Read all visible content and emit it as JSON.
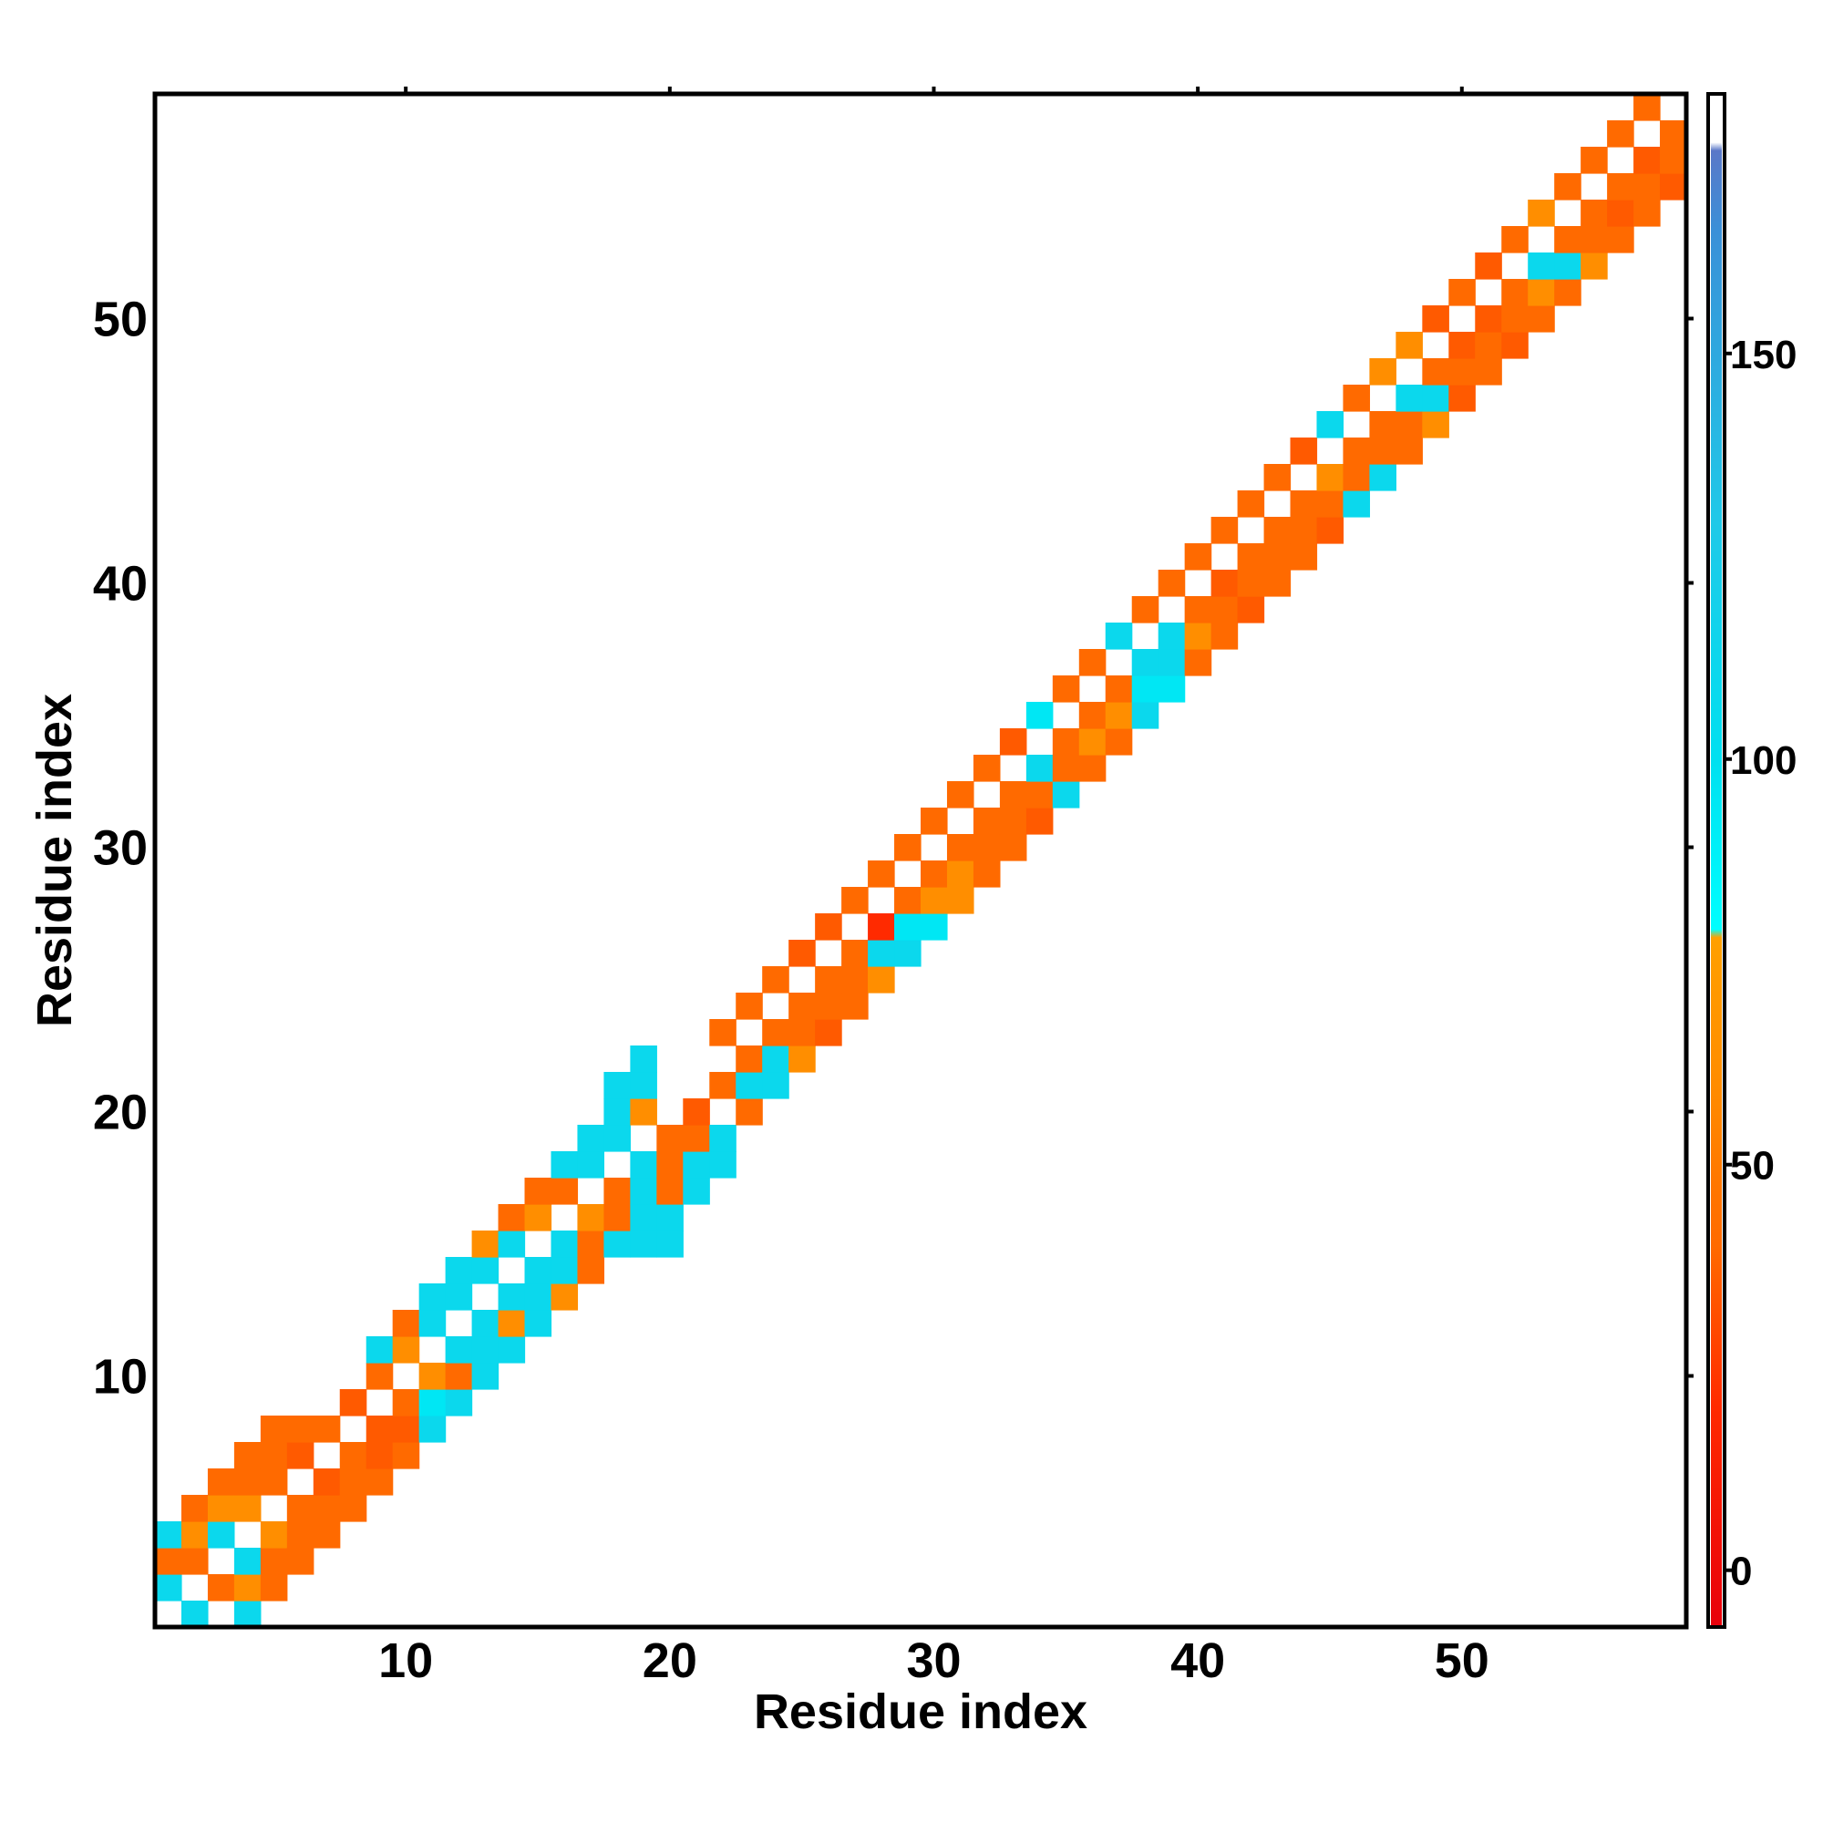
{
  "chart_data": {
    "type": "heatmap",
    "title": "",
    "xlabel": "Residue index",
    "ylabel": "Residue index",
    "xlim": [
      0.5,
      58.5
    ],
    "ylim": [
      0.5,
      58.5
    ],
    "x_ticks": [
      10,
      20,
      30,
      40,
      50
    ],
    "y_ticks": [
      10,
      20,
      30,
      40,
      50
    ],
    "grid": false,
    "colorbar": {
      "placement": "right",
      "range": [
        -7,
        182
      ],
      "ticks": [
        0,
        50,
        100,
        150
      ],
      "gradient": [
        {
          "value": -7,
          "color": "#e8000b"
        },
        {
          "value": 20,
          "color": "#ff2a00"
        },
        {
          "value": 40,
          "color": "#ff6a00"
        },
        {
          "value": 60,
          "color": "#ff8c00"
        },
        {
          "value": 78,
          "color": "#ffa000"
        },
        {
          "value": 79,
          "color": "#00ffff"
        },
        {
          "value": 100,
          "color": "#00e0f0"
        },
        {
          "value": 130,
          "color": "#20c8e8"
        },
        {
          "value": 165,
          "color": "#3a90d8"
        },
        {
          "value": 175,
          "color": "#5a78c8"
        },
        {
          "value": 176,
          "color": "#ffffff"
        },
        {
          "value": 182,
          "color": "#ffffff"
        }
      ]
    },
    "cells": [
      [
        1,
        2,
        110
      ],
      [
        1,
        3,
        40
      ],
      [
        1,
        4,
        110
      ],
      [
        2,
        1,
        110
      ],
      [
        2,
        3,
        40
      ],
      [
        2,
        4,
        62
      ],
      [
        2,
        5,
        40
      ],
      [
        3,
        2,
        40
      ],
      [
        3,
        4,
        110
      ],
      [
        3,
        5,
        62
      ],
      [
        3,
        6,
        40
      ],
      [
        4,
        1,
        110
      ],
      [
        4,
        2,
        62
      ],
      [
        4,
        3,
        110
      ],
      [
        4,
        5,
        62
      ],
      [
        4,
        6,
        40
      ],
      [
        4,
        7,
        40
      ],
      [
        5,
        2,
        40
      ],
      [
        5,
        3,
        40
      ],
      [
        5,
        4,
        62
      ],
      [
        5,
        6,
        40
      ],
      [
        5,
        7,
        40
      ],
      [
        5,
        8,
        40
      ],
      [
        6,
        3,
        40
      ],
      [
        6,
        4,
        40
      ],
      [
        6,
        5,
        40
      ],
      [
        6,
        7,
        35
      ],
      [
        6,
        8,
        40
      ],
      [
        7,
        4,
        40
      ],
      [
        7,
        5,
        40
      ],
      [
        7,
        6,
        35
      ],
      [
        7,
        8,
        40
      ],
      [
        8,
        5,
        40
      ],
      [
        8,
        6,
        40
      ],
      [
        8,
        7,
        40
      ],
      [
        8,
        9,
        35
      ],
      [
        9,
        6,
        40
      ],
      [
        9,
        7,
        35
      ],
      [
        9,
        8,
        35
      ],
      [
        9,
        10,
        40
      ],
      [
        9,
        11,
        110
      ],
      [
        10,
        7,
        40
      ],
      [
        10,
        8,
        35
      ],
      [
        10,
        9,
        40
      ],
      [
        10,
        11,
        62
      ],
      [
        10,
        12,
        40
      ],
      [
        11,
        8,
        110
      ],
      [
        11,
        9,
        95
      ],
      [
        11,
        10,
        62
      ],
      [
        11,
        12,
        110
      ],
      [
        11,
        13,
        110
      ],
      [
        12,
        9,
        110
      ],
      [
        12,
        10,
        40
      ],
      [
        12,
        11,
        110
      ],
      [
        12,
        13,
        110
      ],
      [
        12,
        14,
        110
      ],
      [
        13,
        10,
        110
      ],
      [
        13,
        11,
        110
      ],
      [
        13,
        12,
        110
      ],
      [
        13,
        14,
        110
      ],
      [
        13,
        15,
        62
      ],
      [
        14,
        11,
        110
      ],
      [
        14,
        12,
        62
      ],
      [
        14,
        13,
        110
      ],
      [
        14,
        15,
        110
      ],
      [
        14,
        16,
        40
      ],
      [
        15,
        12,
        110
      ],
      [
        15,
        13,
        110
      ],
      [
        15,
        14,
        110
      ],
      [
        15,
        16,
        62
      ],
      [
        15,
        17,
        40
      ],
      [
        16,
        13,
        62
      ],
      [
        16,
        14,
        110
      ],
      [
        16,
        15,
        110
      ],
      [
        16,
        17,
        40
      ],
      [
        16,
        18,
        110
      ],
      [
        17,
        14,
        40
      ],
      [
        17,
        15,
        40
      ],
      [
        17,
        16,
        62
      ],
      [
        17,
        18,
        110
      ],
      [
        17,
        19,
        110
      ],
      [
        18,
        15,
        110
      ],
      [
        18,
        16,
        40
      ],
      [
        18,
        17,
        40
      ],
      [
        18,
        19,
        110
      ],
      [
        18,
        20,
        110
      ],
      [
        19,
        15,
        110
      ],
      [
        19,
        16,
        110
      ],
      [
        19,
        17,
        110
      ],
      [
        19,
        18,
        110
      ],
      [
        19,
        20,
        62
      ],
      [
        20,
        15,
        110
      ],
      [
        20,
        16,
        110
      ],
      [
        20,
        17,
        40
      ],
      [
        20,
        18,
        40
      ],
      [
        20,
        19,
        40
      ],
      [
        21,
        17,
        110
      ],
      [
        21,
        18,
        110
      ],
      [
        21,
        19,
        40
      ],
      [
        21,
        20,
        35
      ],
      [
        22,
        18,
        110
      ],
      [
        22,
        19,
        110
      ],
      [
        22,
        21,
        40
      ],
      [
        22,
        23,
        40
      ],
      [
        23,
        20,
        40
      ],
      [
        23,
        21,
        110
      ],
      [
        23,
        22,
        40
      ],
      [
        23,
        24,
        40
      ],
      [
        24,
        21,
        110
      ],
      [
        24,
        22,
        110
      ],
      [
        24,
        23,
        40
      ],
      [
        24,
        25,
        40
      ],
      [
        25,
        22,
        62
      ],
      [
        25,
        23,
        40
      ],
      [
        25,
        24,
        40
      ],
      [
        25,
        26,
        35
      ],
      [
        26,
        23,
        35
      ],
      [
        26,
        24,
        40
      ],
      [
        26,
        25,
        40
      ],
      [
        26,
        27,
        35
      ],
      [
        27,
        24,
        40
      ],
      [
        27,
        25,
        40
      ],
      [
        27,
        26,
        40
      ],
      [
        27,
        28,
        40
      ],
      [
        28,
        25,
        62
      ],
      [
        28,
        26,
        110
      ],
      [
        28,
        27,
        20
      ],
      [
        28,
        29,
        40
      ],
      [
        29,
        26,
        110
      ],
      [
        29,
        27,
        95
      ],
      [
        29,
        28,
        40
      ],
      [
        29,
        30,
        40
      ],
      [
        30,
        27,
        95
      ],
      [
        30,
        28,
        62
      ],
      [
        30,
        29,
        40
      ],
      [
        30,
        31,
        40
      ],
      [
        31,
        28,
        62
      ],
      [
        31,
        29,
        62
      ],
      [
        31,
        30,
        40
      ],
      [
        31,
        32,
        40
      ],
      [
        32,
        29,
        40
      ],
      [
        32,
        30,
        40
      ],
      [
        32,
        31,
        40
      ],
      [
        32,
        33,
        40
      ],
      [
        33,
        30,
        40
      ],
      [
        33,
        31,
        40
      ],
      [
        33,
        32,
        40
      ],
      [
        33,
        34,
        35
      ],
      [
        34,
        31,
        35
      ],
      [
        34,
        32,
        40
      ],
      [
        34,
        33,
        110
      ],
      [
        34,
        35,
        95
      ],
      [
        35,
        32,
        110
      ],
      [
        35,
        33,
        40
      ],
      [
        35,
        34,
        40
      ],
      [
        35,
        36,
        40
      ],
      [
        36,
        33,
        40
      ],
      [
        36,
        34,
        62
      ],
      [
        36,
        35,
        40
      ],
      [
        36,
        37,
        40
      ],
      [
        37,
        34,
        40
      ],
      [
        37,
        35,
        62
      ],
      [
        37,
        36,
        40
      ],
      [
        37,
        38,
        110
      ],
      [
        38,
        35,
        110
      ],
      [
        38,
        36,
        95
      ],
      [
        38,
        37,
        110
      ],
      [
        38,
        39,
        40
      ],
      [
        39,
        36,
        95
      ],
      [
        39,
        37,
        110
      ],
      [
        39,
        38,
        110
      ],
      [
        39,
        40,
        40
      ],
      [
        40,
        37,
        40
      ],
      [
        40,
        38,
        62
      ],
      [
        40,
        39,
        40
      ],
      [
        40,
        41,
        40
      ],
      [
        41,
        38,
        40
      ],
      [
        41,
        39,
        40
      ],
      [
        41,
        40,
        35
      ],
      [
        41,
        42,
        40
      ],
      [
        42,
        39,
        35
      ],
      [
        42,
        40,
        40
      ],
      [
        42,
        41,
        40
      ],
      [
        42,
        43,
        40
      ],
      [
        43,
        40,
        40
      ],
      [
        43,
        41,
        40
      ],
      [
        43,
        42,
        40
      ],
      [
        43,
        44,
        40
      ],
      [
        44,
        41,
        40
      ],
      [
        44,
        42,
        40
      ],
      [
        44,
        43,
        40
      ],
      [
        44,
        45,
        35
      ],
      [
        45,
        42,
        35
      ],
      [
        45,
        43,
        40
      ],
      [
        45,
        44,
        62
      ],
      [
        45,
        46,
        110
      ],
      [
        46,
        43,
        110
      ],
      [
        46,
        44,
        40
      ],
      [
        46,
        45,
        40
      ],
      [
        46,
        47,
        40
      ],
      [
        47,
        44,
        110
      ],
      [
        47,
        45,
        40
      ],
      [
        47,
        46,
        40
      ],
      [
        47,
        48,
        62
      ],
      [
        48,
        45,
        40
      ],
      [
        48,
        46,
        40
      ],
      [
        48,
        47,
        110
      ],
      [
        48,
        49,
        62
      ],
      [
        49,
        46,
        62
      ],
      [
        49,
        47,
        110
      ],
      [
        49,
        48,
        40
      ],
      [
        49,
        50,
        35
      ],
      [
        50,
        47,
        35
      ],
      [
        50,
        48,
        40
      ],
      [
        50,
        49,
        35
      ],
      [
        50,
        51,
        40
      ],
      [
        51,
        48,
        40
      ],
      [
        51,
        49,
        40
      ],
      [
        51,
        50,
        35
      ],
      [
        51,
        52,
        35
      ],
      [
        52,
        49,
        35
      ],
      [
        52,
        50,
        40
      ],
      [
        52,
        51,
        40
      ],
      [
        52,
        53,
        40
      ],
      [
        53,
        50,
        40
      ],
      [
        53,
        51,
        62
      ],
      [
        53,
        52,
        110
      ],
      [
        53,
        54,
        62
      ],
      [
        54,
        51,
        40
      ],
      [
        54,
        52,
        110
      ],
      [
        54,
        53,
        40
      ],
      [
        54,
        55,
        40
      ],
      [
        55,
        52,
        62
      ],
      [
        55,
        53,
        40
      ],
      [
        55,
        54,
        40
      ],
      [
        55,
        56,
        40
      ],
      [
        56,
        53,
        40
      ],
      [
        56,
        54,
        35
      ],
      [
        56,
        55,
        40
      ],
      [
        56,
        57,
        40
      ],
      [
        57,
        54,
        40
      ],
      [
        57,
        55,
        40
      ],
      [
        57,
        56,
        35
      ],
      [
        57,
        58,
        40
      ],
      [
        58,
        55,
        35
      ],
      [
        58,
        56,
        40
      ],
      [
        58,
        57,
        40
      ],
      [
        18,
        21,
        110
      ],
      [
        19,
        21,
        110
      ],
      [
        19,
        22,
        110
      ]
    ]
  }
}
